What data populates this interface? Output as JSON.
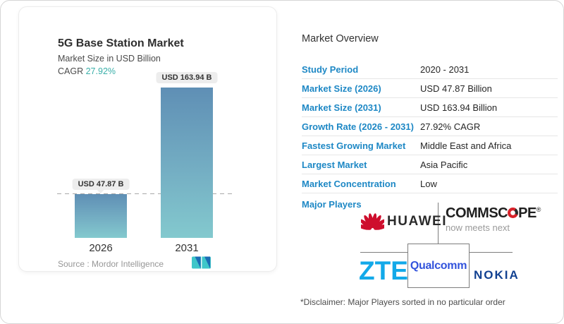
{
  "chart_card": {
    "title": "5G Base Station Market",
    "subtitle": "Market Size in USD Billion",
    "cagr_label": "CAGR",
    "cagr_value": "27.92%",
    "source": "Source :  Mordor Intelligence"
  },
  "chart_data": {
    "type": "bar",
    "title": "5G Base Station Market",
    "subtitle": "Market Size in USD Billion",
    "categories": [
      "2026",
      "2031"
    ],
    "values": [
      47.87,
      163.94
    ],
    "bar_labels": [
      "USD 47.87 B",
      "USD 163.94 B"
    ],
    "unit": "USD Billion",
    "cagr": "27.92%",
    "reference_line_at": 47.87,
    "xlabel": "",
    "ylabel": "",
    "ylim": [
      0,
      170
    ],
    "grid": false,
    "legend": false,
    "bar_color_gradient": [
      "#5f8fb5",
      "#83c9ce"
    ]
  },
  "overview": {
    "heading": "Market Overview",
    "rows": [
      {
        "label": "Study Period",
        "value": "2020 - 2031"
      },
      {
        "label": "Market Size (2026)",
        "value": "USD 47.87 Billion"
      },
      {
        "label": "Market Size (2031)",
        "value": "USD 163.94 Billion"
      },
      {
        "label": "Growth Rate (2026 - 2031)",
        "value": "27.92% CAGR"
      },
      {
        "label": "Fastest Growing Market",
        "value": "Middle East and Africa"
      },
      {
        "label": "Largest Market",
        "value": "Asia Pacific"
      },
      {
        "label": "Market Concentration",
        "value": "Low"
      }
    ],
    "major_players_label": "Major Players",
    "players": [
      "Huawei",
      "CommScope",
      "ZTE",
      "Qualcomm",
      "Nokia"
    ],
    "disclaimer": "*Disclaimer: Major Players sorted in no particular order"
  },
  "players": {
    "huawei": "HUAWEI",
    "commscope_part1": "COMMSC",
    "commscope_part2": "PE",
    "commscope_reg": "®",
    "commscope_tagline": "now meets next",
    "zte": "ZTE",
    "qualcomm": "Qualcomm",
    "nokia": "NOKIA"
  },
  "colors": {
    "label_blue": "#1e88c5",
    "cagr_teal": "#3aafa9",
    "bar_top": "#5f8fb5",
    "bar_bottom": "#83c9ce",
    "huawei_red": "#ce0e2d",
    "commscope_red": "#d8222a",
    "zte_blue": "#12a9e9",
    "qualcomm_blue": "#3253dc",
    "nokia_navy": "#124191",
    "mordor_teal": "#3ec6c9",
    "mordor_navy": "#1b6db5"
  }
}
